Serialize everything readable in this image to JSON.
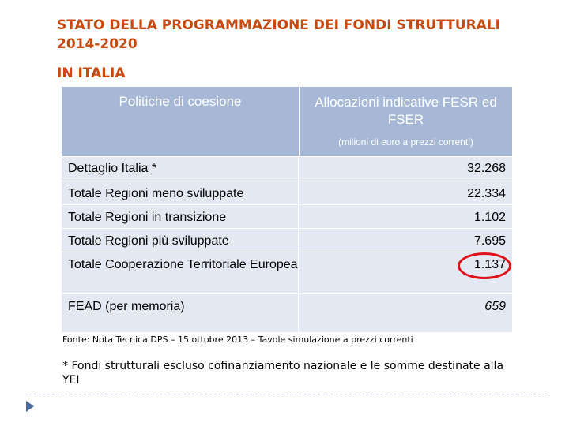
{
  "title": {
    "line1": "STATO DELLA PROGRAMMAZIONE DEI FONDI STRUTTURALI",
    "line2": "2014-2020",
    "line3": "IN ITALIA"
  },
  "table": {
    "header_left": "Politiche di coesione",
    "header_right": "Allocazioni indicative FESR ed FSER",
    "header_right_sub": "(milioni di euro a prezzi correnti)",
    "rows": [
      {
        "label": "Dettaglio Italia *",
        "value": "32.268"
      },
      {
        "label": "Totale Regioni meno sviluppate",
        "value": "22.334"
      },
      {
        "label": "Totale Regioni in transizione",
        "value": "1.102"
      },
      {
        "label": "Totale Regioni più sviluppate",
        "value": "7.695"
      },
      {
        "label": "Totale Cooperazione Territoriale Europea",
        "value": "1.137"
      },
      {
        "label": "FEAD (per memoria)",
        "value": "659"
      }
    ]
  },
  "source_note": "Fonte: Nota Tecnica DPS – 15 ottobre 2013 – Tavole simulazione a prezzi correnti",
  "footnote": "* Fondi strutturali escluso cofinanziamento nazionale e le somme destinate alla YEI",
  "colors": {
    "title": "#c9480e",
    "header_bg": "#a6b8d6",
    "row_bg": "#e3e8f3",
    "highlight_circle": "#e0101a",
    "bullet": "#4a6aa0"
  },
  "icons": {
    "bullet": "triangle-bullet-icon",
    "highlight": "red-ellipse-highlight"
  }
}
